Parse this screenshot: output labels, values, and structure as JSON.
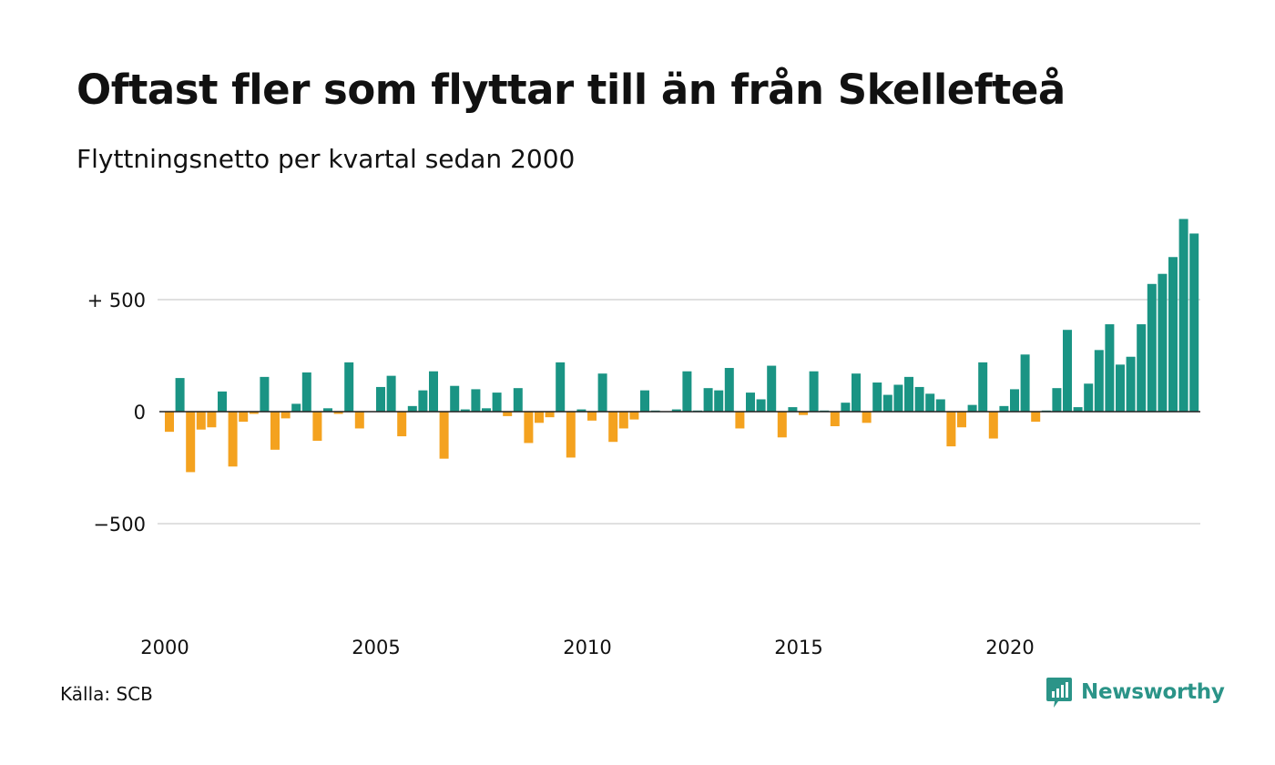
{
  "title": "Oftast fler som flyttar till än från Skellefteå",
  "subtitle": "Flyttningsnetto per kvartal sedan 2000",
  "source": "Källa: SCB",
  "brand": "Newsworthy",
  "colors": {
    "positive": "#1a9484",
    "negative": "#f4a21f",
    "grid": "#e0e0e0",
    "zero": "#222222",
    "brand": "#2b9488"
  },
  "icons": {
    "logo": "chart-speech-bubble-icon"
  },
  "chart_data": {
    "type": "bar",
    "x_start": "2000 Q1",
    "ylim": [
      -900,
      900
    ],
    "yticks": [
      {
        "value": 500,
        "label": "+ 500"
      },
      {
        "value": 0,
        "label": "0"
      },
      {
        "value": -500,
        "label": "−500"
      }
    ],
    "xticks": [
      {
        "year": 2000,
        "label": "2000"
      },
      {
        "year": 2005,
        "label": "2005"
      },
      {
        "year": 2010,
        "label": "2010"
      },
      {
        "year": 2015,
        "label": "2015"
      },
      {
        "year": 2020,
        "label": "2020"
      }
    ],
    "grid": true,
    "legend": "none",
    "values": [
      -90,
      150,
      -270,
      -80,
      -70,
      90,
      -245,
      -45,
      -10,
      155,
      -170,
      -30,
      35,
      175,
      -130,
      15,
      -10,
      220,
      -75,
      0,
      110,
      160,
      -110,
      25,
      95,
      180,
      -210,
      115,
      10,
      100,
      15,
      85,
      -20,
      105,
      -140,
      -50,
      -25,
      220,
      -205,
      10,
      -40,
      170,
      -135,
      -75,
      -35,
      95,
      5,
      0,
      10,
      180,
      5,
      105,
      95,
      195,
      -75,
      85,
      55,
      205,
      -115,
      20,
      -15,
      180,
      5,
      -65,
      40,
      170,
      -50,
      130,
      75,
      120,
      155,
      110,
      80,
      55,
      -155,
      -70,
      30,
      220,
      -120,
      25,
      100,
      255,
      -45,
      5,
      105,
      365,
      20,
      125,
      275,
      390,
      210,
      245,
      390,
      570,
      615,
      690,
      860,
      795
    ]
  }
}
